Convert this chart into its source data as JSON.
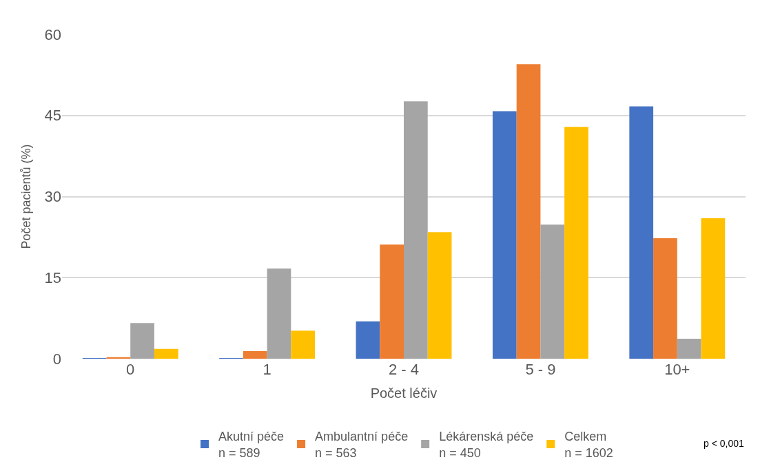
{
  "chart_data": {
    "type": "bar",
    "xlabel": "Počet léčiv",
    "ylabel": "Počet pacientů (%)",
    "categories": [
      "0",
      "1",
      "2 - 4",
      "5 - 9",
      "10+"
    ],
    "series": [
      {
        "name": "Akutní péče\nn = 589",
        "color": "#4472c4",
        "values": [
          0.1,
          0.1,
          6.9,
          45.8,
          46.7
        ]
      },
      {
        "name": "Ambulantní péče\nn = 563",
        "color": "#ed7d31",
        "values": [
          0.3,
          1.4,
          21.1,
          54.5,
          22.3
        ]
      },
      {
        "name": "Lékárenská péče\nn = 450",
        "color": "#a5a5a5",
        "values": [
          6.6,
          16.7,
          47.6,
          24.8,
          3.7
        ]
      },
      {
        "name": "Celkem\nn = 1602",
        "color": "#ffc000",
        "values": [
          1.8,
          5.2,
          23.4,
          42.9,
          26.0
        ]
      }
    ],
    "ylim": [
      0,
      60
    ],
    "yticks": [
      0,
      15,
      30,
      45,
      60
    ],
    "grid": "y",
    "legend": "bottom",
    "annotations": [
      "p < 0,001"
    ]
  }
}
